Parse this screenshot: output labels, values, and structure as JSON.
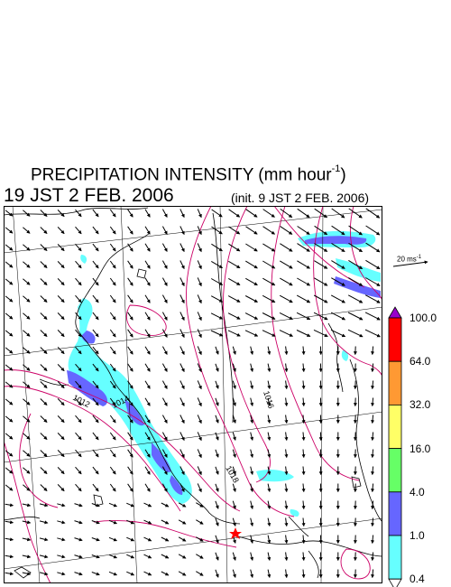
{
  "title": {
    "main": "PRECIPITATION INTENSITY (mm hour",
    "sup": "-1",
    "close": ")",
    "valid_time": "19 JST 2 FEB. 2006",
    "init_time": "(init. 9 JST 2 FEB. 2006)"
  },
  "map": {
    "isobar_labels": [
      "1012",
      "1014",
      "1016",
      "1018"
    ],
    "marker": "red star"
  },
  "wind_reference": {
    "label": "20 ms",
    "unit_sup": "-1"
  },
  "colorbar": {
    "levels": [
      "100.0",
      "64.0",
      "32.0",
      "16.0",
      "4.0",
      "1.0",
      "0.4"
    ],
    "colors": [
      "#9900cc",
      "#ff0000",
      "#ff9933",
      "#ffff66",
      "#66ff66",
      "#6666ff",
      "#66ffff",
      "#ffffff"
    ]
  },
  "colors": {
    "isobar": "#cc0066",
    "coastline": "#000000",
    "grid": "#000000",
    "precip_light": "#66ffff",
    "precip_medium": "#6666ff"
  }
}
